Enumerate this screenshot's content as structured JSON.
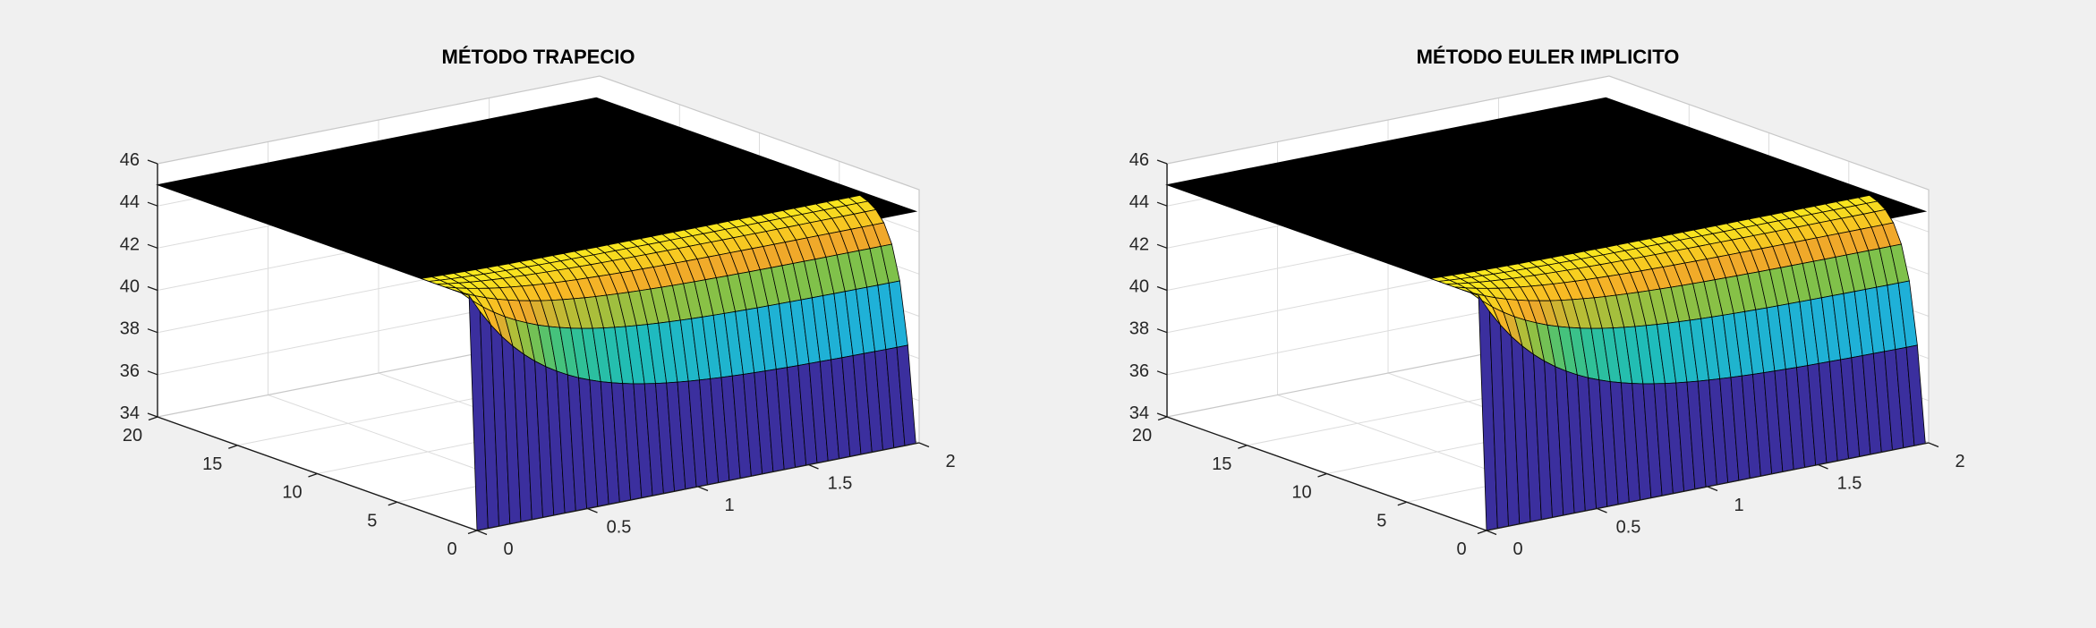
{
  "figure": {
    "background_color": "#F0F0F0",
    "panes_color": "#FFFFFF",
    "grid_color": "#DCDCDC",
    "pane_edge_color": "#C8C8C8",
    "axis_color": "#1A1A1A",
    "tick_label_color": "#262626",
    "mesh_line_color": "#000000",
    "surface_top_color": "#000000",
    "title_left": "MÉTODO TRAPECIO",
    "title_right": "MÉTODO EULER IMPLICITO"
  },
  "chart_data": [
    {
      "type": "surface",
      "title": "MÉTODO TRAPECIO",
      "xlim": [
        0,
        2
      ],
      "ylim": [
        0,
        20
      ],
      "zlim": [
        34,
        46
      ],
      "x_ticks": [
        0,
        0.5,
        1,
        1.5,
        2
      ],
      "y_ticks": [
        0,
        5,
        10,
        15,
        20
      ],
      "z_ticks": [
        34,
        36,
        38,
        40,
        42,
        44,
        46
      ],
      "x_gridlines": [
        0.5,
        1,
        1.5
      ],
      "y_gridlines": [
        5,
        10,
        15
      ],
      "z_gridlines": [
        36,
        38,
        40,
        42,
        44
      ],
      "view": {
        "azimuth": -37.5,
        "elevation": 30
      },
      "grid_on": true,
      "legend": "none",
      "colormap": "parula",
      "caxis": [
        34,
        45
      ],
      "surface_model": {
        "initial_value": 34,
        "steady_state_value": 45,
        "first_step_base": 38.5,
        "first_step_amplitude": 6.5,
        "first_step_decay_x": 0.35,
        "step_convergence_ratio": 0.55,
        "time_step": 0.5,
        "x_step": 0.05,
        "x_max_drawn": 1.985,
        "visible_band_rows": 7
      },
      "colormap_anchors": [
        [
          34.0,
          "#3B2F9E"
        ],
        [
          35.5,
          "#4144C8"
        ],
        [
          36.8,
          "#3568DE"
        ],
        [
          37.8,
          "#2397DA"
        ],
        [
          38.5,
          "#1FB0D9"
        ],
        [
          39.2,
          "#1FBCBB"
        ],
        [
          40.0,
          "#2DC09B"
        ],
        [
          40.7,
          "#4AC276"
        ],
        [
          41.5,
          "#83C148"
        ],
        [
          42.3,
          "#B9BD36"
        ],
        [
          43.0,
          "#EFA72B"
        ],
        [
          43.6,
          "#F8BB24"
        ],
        [
          44.2,
          "#F7D120"
        ],
        [
          44.7,
          "#F8E51F"
        ],
        [
          45.0,
          "#FAEC21"
        ]
      ]
    },
    {
      "type": "surface",
      "title": "MÉTODO EULER IMPLICITO",
      "xlim": [
        0,
        2
      ],
      "ylim": [
        0,
        20
      ],
      "zlim": [
        34,
        46
      ],
      "x_ticks": [
        0,
        0.5,
        1,
        1.5,
        2
      ],
      "y_ticks": [
        0,
        5,
        10,
        15,
        20
      ],
      "z_ticks": [
        34,
        36,
        38,
        40,
        42,
        44,
        46
      ],
      "x_gridlines": [
        0.5,
        1,
        1.5
      ],
      "y_gridlines": [
        5,
        10,
        15
      ],
      "z_gridlines": [
        36,
        38,
        40,
        42,
        44
      ],
      "view": {
        "azimuth": -37.5,
        "elevation": 30
      },
      "grid_on": true,
      "legend": "none",
      "colormap": "parula",
      "caxis": [
        34,
        45
      ],
      "surface_model": {
        "initial_value": 34,
        "steady_state_value": 45,
        "first_step_base": 38.5,
        "first_step_amplitude": 6.5,
        "first_step_decay_x": 0.35,
        "step_convergence_ratio": 0.55,
        "time_step": 0.5,
        "x_step": 0.05,
        "x_max_drawn": 1.985,
        "visible_band_rows": 7
      },
      "colormap_anchors": [
        [
          34.0,
          "#3B2F9E"
        ],
        [
          35.5,
          "#4144C8"
        ],
        [
          36.8,
          "#3568DE"
        ],
        [
          37.8,
          "#2397DA"
        ],
        [
          38.5,
          "#1FB0D9"
        ],
        [
          39.2,
          "#1FBCBB"
        ],
        [
          40.0,
          "#2DC09B"
        ],
        [
          40.7,
          "#4AC276"
        ],
        [
          41.5,
          "#83C148"
        ],
        [
          42.3,
          "#B9BD36"
        ],
        [
          43.0,
          "#EFA72B"
        ],
        [
          43.6,
          "#F8BB24"
        ],
        [
          44.2,
          "#F7D120"
        ],
        [
          44.7,
          "#F8E51F"
        ],
        [
          45.0,
          "#FAEC21"
        ]
      ]
    }
  ]
}
